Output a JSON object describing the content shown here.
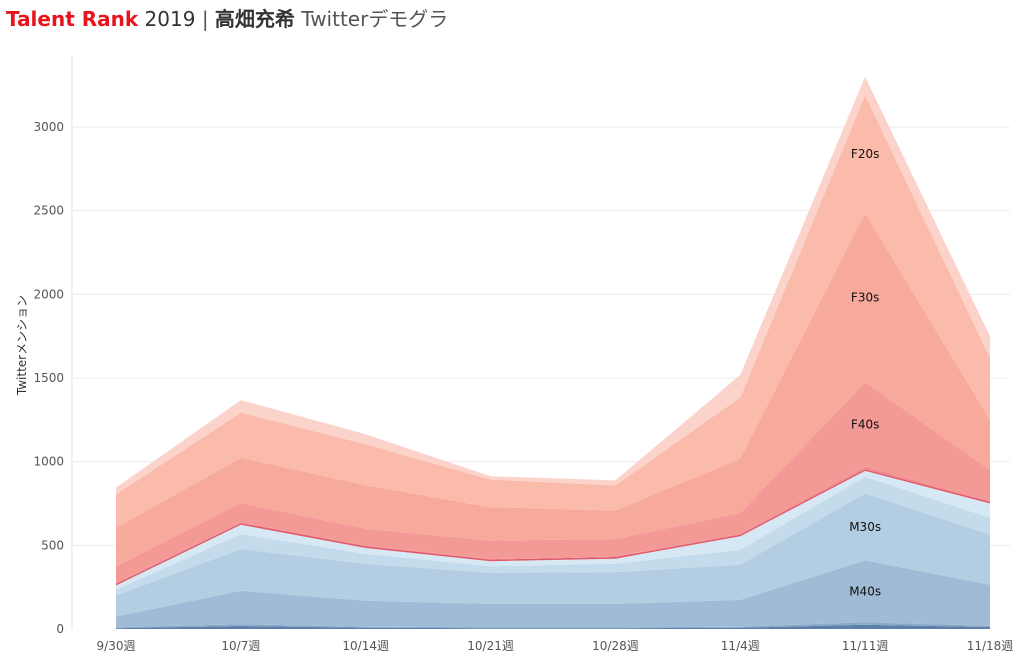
{
  "title": {
    "brand": "Talent Rank",
    "year": "2019",
    "separator": "|",
    "name": "高畑充希",
    "subtitle": "Twitterデモグラ"
  },
  "chart_data": {
    "type": "area",
    "stacked": true,
    "ylabel": "Twitterメンション",
    "xlabel": "",
    "ylim": [
      0,
      3400
    ],
    "yticks": [
      0,
      500,
      1000,
      1500,
      2000,
      2500,
      3000
    ],
    "grid": true,
    "categories": [
      "9/30週",
      "10/7週",
      "10/14週",
      "10/21週",
      "10/28週",
      "11/4週",
      "11/11週",
      "11/18週"
    ],
    "series": [
      {
        "name": "",
        "color": "#5a80ab",
        "values": [
          5,
          18,
          8,
          5,
          5,
          8,
          25,
          12
        ]
      },
      {
        "name": "",
        "color": "#8aa9c9",
        "values": [
          5,
          10,
          6,
          5,
          5,
          6,
          15,
          8
        ]
      },
      {
        "name": "M40s",
        "color": "#9fbbd5",
        "values": [
          65,
          200,
          155,
          140,
          140,
          160,
          370,
          245
        ]
      },
      {
        "name": "M30s",
        "color": "#b3cde2",
        "values": [
          125,
          250,
          220,
          185,
          190,
          210,
          400,
          300
        ]
      },
      {
        "name": "",
        "color": "#c4dbeb",
        "values": [
          35,
          90,
          60,
          40,
          50,
          90,
          100,
          100
        ]
      },
      {
        "name": "",
        "color": "#d6e8f3",
        "values": [
          25,
          55,
          35,
          30,
          30,
          80,
          35,
          85
        ]
      },
      {
        "name": "",
        "color": "#e15a6c",
        "values": [
          10,
          10,
          10,
          10,
          10,
          10,
          10,
          10
        ]
      },
      {
        "name": "",
        "color": "#f08a8a",
        "values": [
          5,
          5,
          5,
          3,
          3,
          5,
          15,
          5
        ]
      },
      {
        "name": "F40s",
        "color": "#f39996",
        "values": [
          100,
          115,
          100,
          110,
          105,
          125,
          505,
          185
        ]
      },
      {
        "name": "F30s",
        "color": "#f7a99c",
        "values": [
          230,
          270,
          260,
          200,
          170,
          325,
          1010,
          300
        ]
      },
      {
        "name": "F20s",
        "color": "#fbbbaa",
        "values": [
          200,
          270,
          245,
          165,
          150,
          365,
          705,
          370
        ]
      },
      {
        "name": "",
        "color": "#fcd3cb",
        "values": [
          40,
          75,
          60,
          20,
          30,
          135,
          110,
          130
        ]
      }
    ]
  }
}
